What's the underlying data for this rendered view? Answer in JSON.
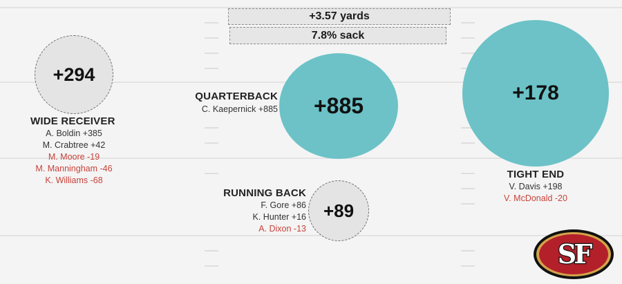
{
  "stats": {
    "yards": "+3.57 yards",
    "sack": "7.8% sack"
  },
  "wide_receiver": {
    "value": "+294",
    "heading": "WIDE RECEIVER",
    "players": [
      {
        "name": "A. Boldin +385",
        "tone": "pos"
      },
      {
        "name": "M. Crabtree +42",
        "tone": "pos"
      },
      {
        "name": "M. Moore -19",
        "tone": "neg"
      },
      {
        "name": "M. Manningham -46",
        "tone": "neg"
      },
      {
        "name": "K. Williams -68",
        "tone": "neg"
      }
    ]
  },
  "quarterback": {
    "value": "+885",
    "heading": "QUARTERBACK",
    "players": [
      {
        "name": "C. Kaepernick +885",
        "tone": "pos"
      }
    ]
  },
  "running_back": {
    "value": "+89",
    "heading": "RUNNING BACK",
    "players": [
      {
        "name": "F. Gore +86",
        "tone": "pos"
      },
      {
        "name": "K. Hunter +16",
        "tone": "pos"
      },
      {
        "name": "A. Dixon -13",
        "tone": "neg"
      }
    ]
  },
  "tight_end": {
    "value": "+178",
    "heading": "TIGHT END",
    "players": [
      {
        "name": "V. Davis +198",
        "tone": "pos"
      },
      {
        "name": "V. McDonald -20",
        "tone": "neg"
      }
    ]
  },
  "logo": {
    "text": "SF",
    "icon": "49ers-sf-logo-icon",
    "colors": {
      "red": "#b3202a",
      "gold": "#d4a34a",
      "black": "#111111"
    }
  },
  "colors": {
    "teal": "#6cc2c7",
    "neutral": "#e4e4e4",
    "negative": "#c8423a"
  }
}
